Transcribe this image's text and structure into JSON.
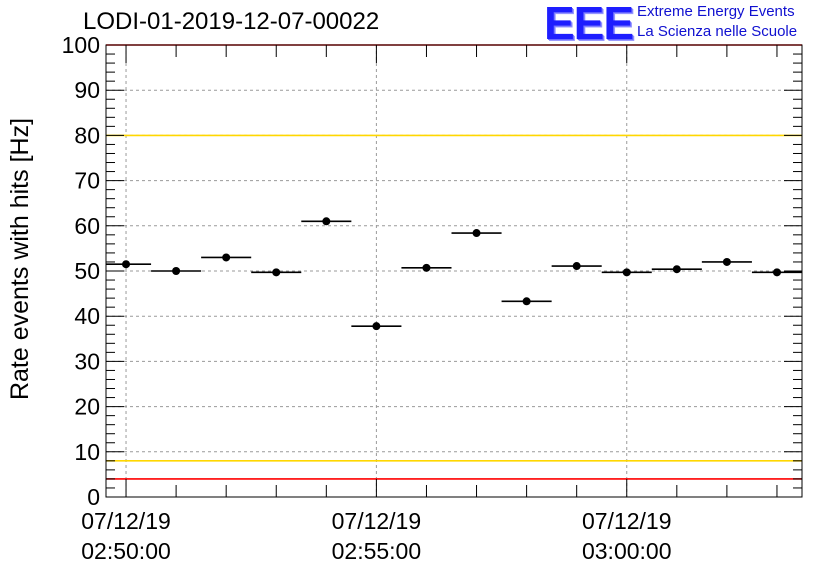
{
  "header": {
    "title": "LODI-01-2019-12-07-00022",
    "logo_mark": "EEE",
    "logo_line1": "Extreme Energy Events",
    "logo_line2": "La Scienza nelle Scuole"
  },
  "colors": {
    "red_line": "#ff0000",
    "yellow_line": "#ffd700",
    "markers": "#000000",
    "logo": "#1e1eff"
  },
  "chart_data": {
    "type": "scatter",
    "title": "LODI-01-2019-12-07-00022",
    "xlabel": "",
    "ylabel": "Rate events with hits [Hz]",
    "ylim": [
      0,
      100
    ],
    "xlim_minutes": [
      -0.2,
      6.75
    ],
    "yticks": [
      "0",
      "10",
      "20",
      "30",
      "40",
      "50",
      "60",
      "70",
      "80",
      "90",
      "100"
    ],
    "xticks": [
      {
        "minutes": 0,
        "date": "07/12/19",
        "time": "02:50:00"
      },
      {
        "minutes": 2.5,
        "date": "07/12/19",
        "time": "02:55:00"
      },
      {
        "minutes": 5,
        "date": "07/12/19",
        "time": "03:00:00"
      }
    ],
    "bin_halfwidth_minutes": 0.25,
    "points": [
      {
        "x": 0.0,
        "y": 51.5
      },
      {
        "x": 0.5,
        "y": 50.0
      },
      {
        "x": 1.0,
        "y": 53.0
      },
      {
        "x": 1.5,
        "y": 49.7
      },
      {
        "x": 2.0,
        "y": 61.0
      },
      {
        "x": 2.5,
        "y": 37.8
      },
      {
        "x": 3.0,
        "y": 50.7
      },
      {
        "x": 3.5,
        "y": 58.4
      },
      {
        "x": 4.0,
        "y": 43.3
      },
      {
        "x": 4.5,
        "y": 51.1
      },
      {
        "x": 5.0,
        "y": 49.7
      },
      {
        "x": 5.5,
        "y": 50.4
      },
      {
        "x": 6.0,
        "y": 52.0
      },
      {
        "x": 6.5,
        "y": 49.7
      }
    ],
    "reference_lines": [
      {
        "name": "upper-red",
        "y": 100,
        "color": "#ff0000"
      },
      {
        "name": "upper-yellow",
        "y": 80,
        "color": "#ffd700"
      },
      {
        "name": "lower-yellow",
        "y": 8,
        "color": "#ffd700"
      },
      {
        "name": "lower-red",
        "y": 4,
        "color": "#ff0000"
      }
    ],
    "grid": true
  }
}
